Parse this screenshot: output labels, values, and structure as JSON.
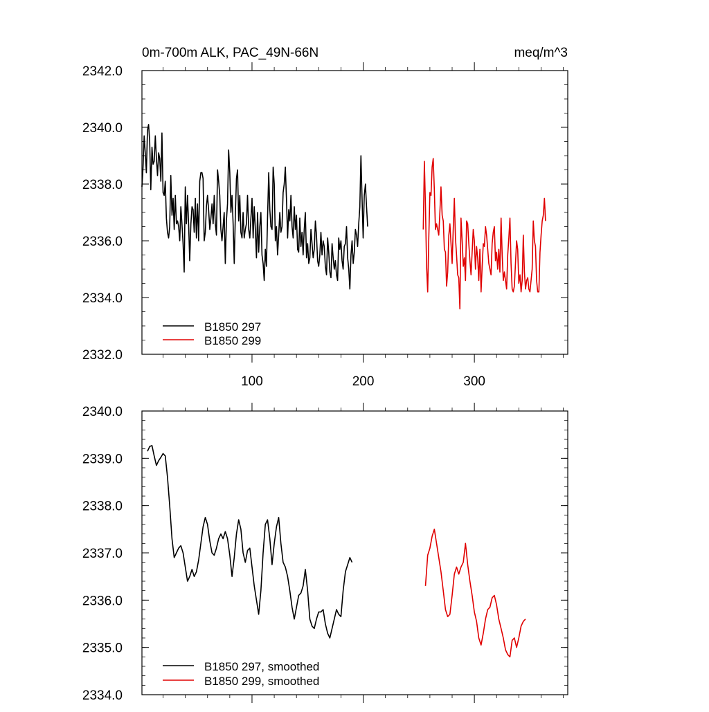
{
  "chart_data": [
    {
      "type": "line",
      "title_left": "0m-700m ALK, PAC_49N-66N",
      "title_right": "meq/m^3",
      "xlabel": "",
      "ylabel": "",
      "xlim": [
        1,
        384
      ],
      "ylim": [
        2332,
        2342
      ],
      "yticks": [
        2332,
        2334,
        2336,
        2338,
        2340,
        2342
      ],
      "ytick_labels": [
        "2332.0",
        "2334.0",
        "2336.0",
        "2338.0",
        "2340.0",
        "2342.0"
      ],
      "xticks": [
        100,
        200,
        300
      ],
      "xtick_labels": [
        "100",
        "200",
        "300"
      ],
      "legend_position": "bottom-left",
      "series": [
        {
          "name": "B1850 297",
          "color": "#000000",
          "x_start": 1,
          "x_step": 1,
          "values": [
            2337.9,
            2338.6,
            2339.7,
            2339.1,
            2338.4,
            2339.9,
            2340.1,
            2339.5,
            2337.8,
            2339.3,
            2338.7,
            2338.8,
            2339.7,
            2338.9,
            2338.3,
            2339.1,
            2338.9,
            2338.1,
            2339.8,
            2337.7,
            2337.6,
            2338.1,
            2336.8,
            2336.3,
            2336.1,
            2336.5,
            2338.3,
            2336.9,
            2337.5,
            2336.4,
            2337.6,
            2336.6,
            2336.7,
            2336.5,
            2336.0,
            2337.2,
            2336.6,
            2335.9,
            2334.9,
            2337.9,
            2336.6,
            2337.6,
            2336.6,
            2335.3,
            2336.6,
            2337.2,
            2337.1,
            2336.3,
            2337.5,
            2336.1,
            2337.3,
            2336.0,
            2338.1,
            2338.4,
            2338.4,
            2338.2,
            2336.0,
            2336.3,
            2337.2,
            2337.6,
            2337.1,
            2336.4,
            2336.8,
            2337.3,
            2336.6,
            2337.6,
            2336.6,
            2336.2,
            2338.5,
            2338.1,
            2337.6,
            2336.4,
            2336.0,
            2336.5,
            2337.0,
            2335.2,
            2336.7,
            2337.3,
            2339.2,
            2338.4,
            2337.0,
            2337.6,
            2336.6,
            2335.2,
            2336.9,
            2338.2,
            2338.5,
            2336.7,
            2337.6,
            2336.3,
            2336.1,
            2337.0,
            2336.1,
            2336.4,
            2336.6,
            2337.6,
            2336.4,
            2336.1,
            2336.8,
            2337.5,
            2336.1,
            2337.2,
            2336.4,
            2335.4,
            2337.0,
            2335.6,
            2336.5,
            2337.0,
            2335.5,
            2335.2,
            2334.6,
            2335.7,
            2335.1,
            2336.8,
            2338.4,
            2337.1,
            2336.5,
            2336.4,
            2338.6,
            2338.0,
            2336.0,
            2336.5,
            2335.5,
            2336.2,
            2337.0,
            2336.3,
            2336.5,
            2337.7,
            2338.0,
            2338.6,
            2337.5,
            2336.1,
            2337.1,
            2336.7,
            2337.6,
            2336.5,
            2336.1,
            2337.2,
            2336.4,
            2336.9,
            2335.7,
            2335.6,
            2336.8,
            2335.8,
            2336.3,
            2335.5,
            2336.4,
            2337.0,
            2335.4,
            2335.9,
            2335.2,
            2335.4,
            2336.4,
            2335.9,
            2335.4,
            2335.7,
            2336.7,
            2336.2,
            2335.3,
            2335.1,
            2335.5,
            2336.3,
            2335.5,
            2336.0,
            2335.8,
            2335.1,
            2334.8,
            2336.1,
            2335.6,
            2334.9,
            2334.7,
            2335.9,
            2335.4,
            2335.0,
            2335.3,
            2334.8,
            2334.6,
            2336.1,
            2335.7,
            2336.0,
            2335.3,
            2335.0,
            2335.8,
            2335.9,
            2336.5,
            2335.4,
            2335.0,
            2334.3,
            2335.5,
            2336.0,
            2335.2,
            2335.6,
            2336.4,
            2336.2,
            2335.8,
            2336.6,
            2337.2,
            2339.0,
            2337.5,
            2336.1,
            2337.6,
            2338.0,
            2337.2,
            2336.5
          ],
          "segments": [
            {
              "x_start": 1,
              "x_end": 254
            }
          ]
        },
        {
          "name": "B1850 299",
          "color": "#e00000",
          "x_start": 254,
          "x_step": 1,
          "values": [
            2336.4,
            2338.8,
            2337.2,
            2335.1,
            2334.2,
            2336.1,
            2337.7,
            2337.6,
            2338.6,
            2338.9,
            2337.8,
            2336.4,
            2336.6,
            2336.4,
            2336.2,
            2337.0,
            2337.9,
            2336.9,
            2336.7,
            2335.7,
            2335.6,
            2334.4,
            2334.9,
            2336.2,
            2336.6,
            2335.9,
            2335.2,
            2336.4,
            2337.5,
            2336.1,
            2335.5,
            2334.8,
            2334.7,
            2333.6,
            2336.8,
            2336.0,
            2335.1,
            2335.4,
            2334.6,
            2336.7,
            2336.6,
            2335.9,
            2335.3,
            2334.8,
            2335.6,
            2336.4,
            2336.0,
            2335.0,
            2335.8,
            2335.4,
            2334.6,
            2335.7,
            2334.2,
            2335.1,
            2335.9,
            2335.8,
            2336.5,
            2336.2,
            2335.7,
            2335.2,
            2335.0,
            2334.8,
            2335.9,
            2336.3,
            2336.5,
            2335.3,
            2335.6,
            2335.0,
            2335.7,
            2334.9,
            2336.8,
            2335.5,
            2334.6,
            2334.9,
            2334.6,
            2334.3,
            2335.5,
            2336.1,
            2336.8,
            2335.2,
            2334.3,
            2334.2,
            2334.4,
            2335.2,
            2336.0,
            2335.7,
            2334.5,
            2334.8,
            2334.2,
            2334.6,
            2336.2,
            2334.9,
            2334.3,
            2334.6,
            2334.7,
            2334.3,
            2334.2,
            2334.6,
            2335.0,
            2336.7,
            2336.0,
            2335.8,
            2334.6,
            2334.2,
            2334.2,
            2335.6,
            2336.2,
            2336.7,
            2336.9,
            2337.5,
            2336.7
          ],
          "segments": [
            {
              "x_start": 254,
              "x_end": 384
            }
          ]
        }
      ]
    },
    {
      "type": "line",
      "title": "",
      "xlabel": "",
      "ylabel": "",
      "xlim": [
        1,
        384
      ],
      "ylim": [
        2334,
        2340
      ],
      "yticks": [
        2334,
        2335,
        2336,
        2337,
        2338,
        2339,
        2340
      ],
      "ytick_labels": [
        "2334.0",
        "2335.0",
        "2336.0",
        "2337.0",
        "2338.0",
        "2339.0",
        "2340.0"
      ],
      "xticks": [
        100,
        200,
        300
      ],
      "legend_position": "bottom-left",
      "series": [
        {
          "name": "B1850 297, smoothed",
          "color": "#000000",
          "x_start": 6,
          "x_step": 2,
          "values": [
            2339.15,
            2339.25,
            2339.27,
            2339.05,
            2338.85,
            2338.95,
            2339.02,
            2339.1,
            2339.05,
            2338.6,
            2338.0,
            2337.3,
            2336.9,
            2337.0,
            2337.1,
            2337.15,
            2337.0,
            2336.7,
            2336.4,
            2336.5,
            2336.65,
            2336.5,
            2336.6,
            2336.85,
            2337.2,
            2337.55,
            2337.75,
            2337.6,
            2337.25,
            2337.0,
            2336.95,
            2337.1,
            2337.3,
            2337.4,
            2337.3,
            2337.45,
            2337.3,
            2336.95,
            2336.5,
            2336.9,
            2337.4,
            2337.7,
            2337.5,
            2337.0,
            2336.8,
            2337.05,
            2337.1,
            2336.7,
            2336.3,
            2336.0,
            2335.7,
            2336.2,
            2337.0,
            2337.6,
            2337.7,
            2337.3,
            2336.75,
            2337.2,
            2337.55,
            2337.75,
            2337.2,
            2336.8,
            2336.7,
            2336.5,
            2336.2,
            2335.85,
            2335.6,
            2335.85,
            2336.1,
            2336.15,
            2336.3,
            2336.65,
            2336.2,
            2335.6,
            2335.45,
            2335.4,
            2335.6,
            2335.75,
            2335.75,
            2335.8,
            2335.5,
            2335.3,
            2335.2,
            2335.4,
            2335.6,
            2335.8,
            2335.7,
            2335.65,
            2336.2,
            2336.6,
            2336.75,
            2336.9,
            2336.8
          ],
          "segments": [
            {
              "x_start": 6,
              "x_end": 306
            }
          ]
        },
        {
          "name": "B1850 299, smoothed",
          "color": "#e00000",
          "x_start": 256,
          "x_step": 2,
          "values": [
            2336.3,
            2336.95,
            2337.1,
            2337.35,
            2337.5,
            2337.2,
            2336.9,
            2336.6,
            2336.2,
            2335.8,
            2335.65,
            2335.7,
            2336.1,
            2336.55,
            2336.7,
            2336.55,
            2336.7,
            2336.8,
            2337.2,
            2336.75,
            2336.4,
            2336.1,
            2335.75,
            2335.55,
            2335.2,
            2335.05,
            2335.3,
            2335.6,
            2335.8,
            2335.85,
            2336.05,
            2336.1,
            2335.9,
            2335.6,
            2335.4,
            2335.2,
            2334.95,
            2334.85,
            2334.8,
            2335.15,
            2335.2,
            2335.0,
            2335.2,
            2335.45,
            2335.55,
            2335.6
          ],
          "segments": [
            {
              "x_start": 256,
              "x_end": 348
            }
          ]
        }
      ]
    }
  ]
}
